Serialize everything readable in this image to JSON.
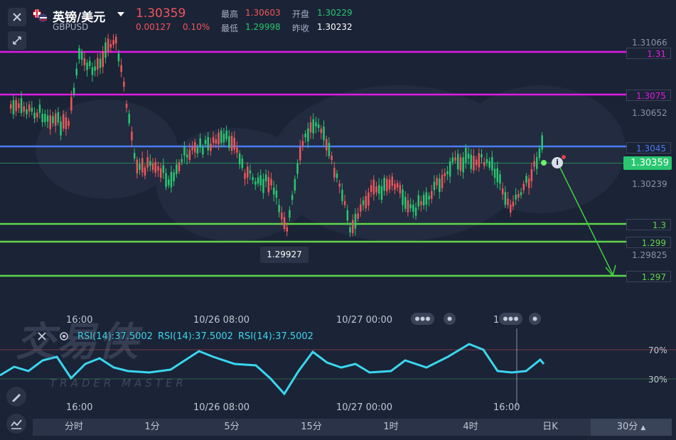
{
  "header": {
    "title": "英镑/美元",
    "code": "GBPUSD",
    "price": "1.30359",
    "change": "0.00127",
    "change_pct": "0.10%",
    "stats": {
      "high_label": "最高",
      "high": "1.30603",
      "open_label": "开盘",
      "open": "1.30229",
      "low_label": "最低",
      "low": "1.29998",
      "prev_label": "昨收",
      "prev": "1.30232"
    }
  },
  "price_axis": {
    "labels": [
      "1.31066",
      "1.30652",
      "1.30239",
      "1.29825"
    ],
    "current": "1.30359"
  },
  "lines": [
    {
      "value": "1.31",
      "color": "#e11be6"
    },
    {
      "value": "1.3075",
      "color": "#e11be6"
    },
    {
      "value": "1.3045",
      "color": "#4a7df2"
    },
    {
      "value": "1.3",
      "color": "#5ed64a"
    },
    {
      "value": "1.299",
      "color": "#5ed64a"
    },
    {
      "value": "1.297",
      "color": "#5ed64a"
    }
  ],
  "low_marker": "1.29927",
  "time_axis": [
    "16:00",
    "10/26 08:00",
    "10/27 00:00",
    "16:00"
  ],
  "rsi": {
    "labels": [
      "RSI(14):37.5002",
      "RSI(14):37.5002",
      "RSI(14):37.5002"
    ],
    "level_high": "70%",
    "level_low": "30%"
  },
  "watermark": {
    "cn": "交易侠",
    "en": "TRADER MASTER"
  },
  "tabs": [
    "分时",
    "1分",
    "5分",
    "15分",
    "1时",
    "4时",
    "日K"
  ],
  "period_select": "30分",
  "colors": {
    "up": "#f0565b",
    "down": "#28c76f",
    "rsi": "#3ad6ef",
    "bg": "#1b2336"
  }
}
